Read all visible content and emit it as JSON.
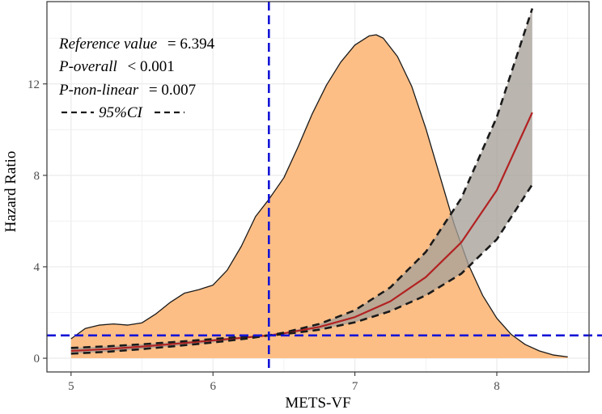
{
  "chart_data": {
    "type": "line",
    "title": "",
    "xlabel": "METS-VF",
    "ylabel": "Hazard Ratio",
    "xlim": [
      4.83,
      8.65
    ],
    "ylim": [
      -0.6,
      15.6
    ],
    "x_ticks": [
      5,
      6,
      7,
      8
    ],
    "x_tick_labels": [
      "5",
      "6",
      "7",
      "8"
    ],
    "y_ticks": [
      0,
      4,
      8,
      12
    ],
    "y_tick_labels": [
      "0",
      "4",
      "8",
      "12"
    ],
    "grid": true,
    "reference_x": 6.394,
    "reference_y": 1,
    "annotations": {
      "reference_label": "Reference value",
      "reference_value": "= 6.394",
      "p_overall_label": "P-overall",
      "p_overall_value": "< 0.001",
      "p_nonlinear_label": "P-non-linear",
      "p_nonlinear_value": "= 0.007",
      "ci_label": "95%CI"
    },
    "density": {
      "name": "distribution",
      "x": [
        5.0,
        5.1,
        5.2,
        5.3,
        5.4,
        5.5,
        5.6,
        5.7,
        5.8,
        5.9,
        6.0,
        6.1,
        6.2,
        6.3,
        6.394,
        6.5,
        6.6,
        6.7,
        6.8,
        6.9,
        7.0,
        7.1,
        7.15,
        7.2,
        7.3,
        7.4,
        7.5,
        7.6,
        7.7,
        7.8,
        7.9,
        8.0,
        8.1,
        8.2,
        8.3,
        8.4,
        8.5
      ],
      "y": [
        0.85,
        1.3,
        1.45,
        1.5,
        1.45,
        1.55,
        1.95,
        2.45,
        2.85,
        3.0,
        3.2,
        3.85,
        4.9,
        6.2,
        6.95,
        7.9,
        9.25,
        10.7,
        11.95,
        12.95,
        13.7,
        14.1,
        14.15,
        14.0,
        13.2,
        11.9,
        10.05,
        7.95,
        5.85,
        4.1,
        2.75,
        1.75,
        1.05,
        0.6,
        0.32,
        0.14,
        0.06
      ]
    },
    "series": [
      {
        "name": "Hazard Ratio",
        "color": "#b22222",
        "x": [
          5.0,
          5.25,
          5.5,
          5.75,
          6.0,
          6.25,
          6.394,
          6.5,
          6.75,
          7.0,
          7.25,
          7.5,
          7.75,
          8.0,
          8.25
        ],
        "values": [
          0.32,
          0.4,
          0.51,
          0.64,
          0.78,
          0.92,
          1.0,
          1.09,
          1.37,
          1.8,
          2.49,
          3.55,
          5.07,
          7.35,
          10.75
        ]
      },
      {
        "name": "95%CI upper",
        "color": "#1a1a1a",
        "x": [
          5.0,
          5.25,
          5.5,
          5.75,
          6.0,
          6.25,
          6.394,
          6.5,
          6.75,
          7.0,
          7.25,
          7.5,
          7.75,
          8.0,
          8.25
        ],
        "values": [
          0.45,
          0.52,
          0.61,
          0.72,
          0.84,
          0.96,
          1.0,
          1.12,
          1.5,
          2.1,
          3.1,
          4.65,
          7.0,
          10.55,
          15.3
        ]
      },
      {
        "name": "95%CI lower",
        "color": "#1a1a1a",
        "x": [
          5.0,
          5.25,
          5.5,
          5.75,
          6.0,
          6.25,
          6.394,
          6.5,
          6.75,
          7.0,
          7.25,
          7.5,
          7.75,
          8.0,
          8.25
        ],
        "values": [
          0.2,
          0.28,
          0.4,
          0.54,
          0.69,
          0.87,
          1.0,
          1.05,
          1.25,
          1.57,
          2.06,
          2.75,
          3.7,
          5.2,
          7.6
        ]
      }
    ],
    "colors": {
      "density_fill": "#fdbe85",
      "density_stroke": "#1a1a1a",
      "ci_band": "#a6a099",
      "reference_line": "#1414d6",
      "grid": "#ebebeb"
    }
  }
}
